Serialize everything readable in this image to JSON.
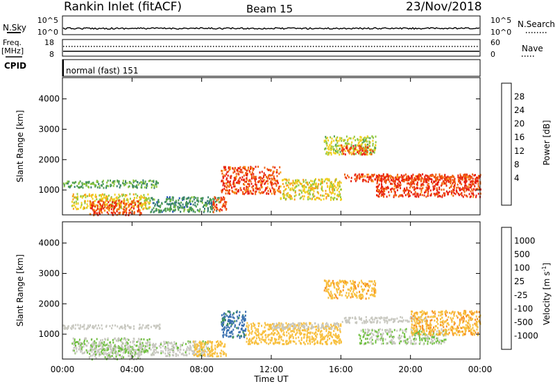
{
  "header": {
    "station": "Rankin Inlet (fitACF)",
    "beam": "Beam 15",
    "date": "23/Nov/2018"
  },
  "strip_panels": {
    "nsky_label": "N.Sky",
    "nsearch_label": "N.Search",
    "nsky_ticks": [
      "10^5",
      "10^0"
    ],
    "nsearch_ticks": [
      "10^5",
      "10^0"
    ],
    "freq_label_1": "Freq.",
    "freq_label_2": "[MHz]",
    "freq_ticks": [
      "18",
      "8"
    ],
    "nave_label": "Nave",
    "nave_ticks": [
      "60",
      "0"
    ],
    "cpid_label": "CPID",
    "cpid_text": "normal (fast) 151"
  },
  "colors": {
    "power_scale": [
      "#1010e8",
      "#2050b0",
      "#3a8070",
      "#50a050",
      "#90c840",
      "#f0d020",
      "#f8a020",
      "#f06010",
      "#e82010"
    ],
    "velocity_scale": [
      "#2040c8",
      "#3a70b0",
      "#40905a",
      "#70c040",
      "#c8c8c0",
      "#f8c040",
      "#f89020",
      "#f06010",
      "#e82010"
    ]
  },
  "chart_data": [
    {
      "type": "heatmap",
      "panel": "power",
      "xlabel": "Time UT",
      "ylabel": "Slant Range [km]",
      "xlim": [
        0,
        24
      ],
      "ylim": [
        180,
        4700
      ],
      "x_tick_labels": [
        "00:00",
        "04:00",
        "08:00",
        "12:00",
        "16:00",
        "20:00",
        "00:00"
      ],
      "y_tick_values": [
        1000,
        2000,
        3000,
        4000
      ],
      "y_tick_labels": [
        "1000",
        "2000",
        "3000",
        "4000"
      ],
      "colorbar_label": "Power [dB]",
      "colorbar_ticks": [
        "28",
        "24",
        "20",
        "16",
        "12",
        "8",
        "4"
      ],
      "colorbar_range": [
        0,
        30
      ],
      "features": [
        {
          "t": [
            0.0,
            5.6
          ],
          "range": [
            1100,
            1350
          ],
          "value": 12
        },
        {
          "t": [
            0.5,
            5.0
          ],
          "range": [
            400,
            900
          ],
          "value": 18
        },
        {
          "t": [
            1.5,
            4.5
          ],
          "range": [
            200,
            700
          ],
          "value": 26
        },
        {
          "t": [
            5.0,
            9.0
          ],
          "range": [
            300,
            800
          ],
          "value": 10
        },
        {
          "t": [
            8.6,
            9.4
          ],
          "range": [
            300,
            800
          ],
          "value": 26
        },
        {
          "t": [
            9.1,
            12.5
          ],
          "range": [
            900,
            1800
          ],
          "value": 26
        },
        {
          "t": [
            12.5,
            16.0
          ],
          "range": [
            700,
            1400
          ],
          "value": 18
        },
        {
          "t": [
            16.0,
            24.0
          ],
          "range": [
            1300,
            1550
          ],
          "value": 27
        },
        {
          "t": [
            18.0,
            24.0
          ],
          "range": [
            800,
            1500
          ],
          "value": 27
        },
        {
          "t": [
            15.0,
            18.0
          ],
          "range": [
            2200,
            2800
          ],
          "value": 16
        },
        {
          "t": [
            16.0,
            17.8
          ],
          "range": [
            2200,
            2500
          ],
          "value": 26
        }
      ]
    },
    {
      "type": "heatmap",
      "panel": "velocity",
      "xlabel": "Time UT",
      "ylabel": "Slant Range [km]",
      "xlim": [
        0,
        24
      ],
      "ylim": [
        180,
        4700
      ],
      "x_tick_labels": [
        "00:00",
        "04:00",
        "08:00",
        "12:00",
        "16:00",
        "20:00",
        "00:00"
      ],
      "y_tick_values": [
        1000,
        2000,
        3000,
        4000
      ],
      "y_tick_labels": [
        "1000",
        "2000",
        "3000",
        "4000"
      ],
      "colorbar_label": "Velocity [m s^-1]",
      "colorbar_ticks": [
        "1000",
        "500",
        "100",
        "25",
        "-25",
        "-100",
        "-500",
        "-1000"
      ],
      "colorbar_range": [
        -1000,
        1000
      ],
      "features": [
        {
          "t": [
            0.0,
            5.6
          ],
          "range": [
            1200,
            1350
          ],
          "value": 0
        },
        {
          "t": [
            0.5,
            5.0
          ],
          "range": [
            400,
            900
          ],
          "value": 90
        },
        {
          "t": [
            1.5,
            4.5
          ],
          "range": [
            200,
            700
          ],
          "value": 80
        },
        {
          "t": [
            5.0,
            8.5
          ],
          "range": [
            300,
            800
          ],
          "value": 60
        },
        {
          "t": [
            7.5,
            9.4
          ],
          "range": [
            300,
            800
          ],
          "value": -200
        },
        {
          "t": [
            9.1,
            10.5
          ],
          "range": [
            900,
            1800
          ],
          "value": 600
        },
        {
          "t": [
            10.5,
            16.0
          ],
          "range": [
            700,
            1400
          ],
          "value": -200
        },
        {
          "t": [
            12.0,
            16.0
          ],
          "range": [
            1200,
            1400
          ],
          "value": 0
        },
        {
          "t": [
            16.0,
            21.0
          ],
          "range": [
            1400,
            1600
          ],
          "value": 0
        },
        {
          "t": [
            17.0,
            22.0
          ],
          "range": [
            700,
            1200
          ],
          "value": 100
        },
        {
          "t": [
            20.0,
            24.0
          ],
          "range": [
            1000,
            1800
          ],
          "value": -300
        },
        {
          "t": [
            15.0,
            18.0
          ],
          "range": [
            2200,
            2800
          ],
          "value": -300
        }
      ]
    }
  ]
}
